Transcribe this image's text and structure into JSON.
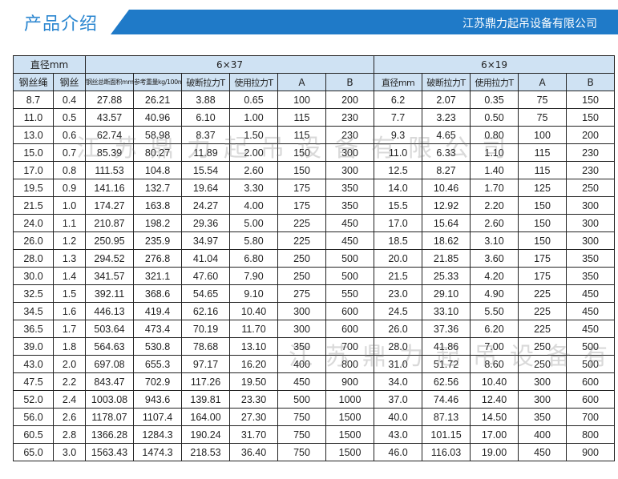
{
  "banner": {
    "title": "产品介绍",
    "company": "江苏鼎力起吊设备有限公司",
    "accent": "#1f7ac8"
  },
  "watermark": "江苏鼎力起吊设备有限公司",
  "table": {
    "group_headers": {
      "diameter": "直径mm",
      "g1": "6×37",
      "g2": "6×19"
    },
    "columns": [
      "钢丝绳",
      "钢丝",
      "钢丝总断面积mm²",
      "参考重量kg/100m",
      "破断拉力T",
      "使用拉力T",
      "A",
      "B",
      "直径mm",
      "破断拉力T",
      "使用拉力T",
      "A",
      "B"
    ],
    "rows": [
      [
        "8.7",
        "0.4",
        "27.88",
        "26.21",
        "3.88",
        "0.65",
        "100",
        "200",
        "6.2",
        "2.07",
        "0.35",
        "75",
        "150"
      ],
      [
        "11.0",
        "0.5",
        "43.57",
        "40.96",
        "6.10",
        "1.00",
        "115",
        "230",
        "7.7",
        "3.23",
        "0.50",
        "75",
        "150"
      ],
      [
        "13.0",
        "0.6",
        "62.74",
        "58.98",
        "8.37",
        "1.50",
        "115",
        "230",
        "9.3",
        "4.65",
        "0.80",
        "100",
        "200"
      ],
      [
        "15.0",
        "0.7",
        "85.39",
        "80.27",
        "11.89",
        "2.00",
        "150",
        "300",
        "11.0",
        "6.33",
        "1.10",
        "115",
        "230"
      ],
      [
        "17.0",
        "0.8",
        "111.53",
        "104.8",
        "15.54",
        "2.60",
        "150",
        "300",
        "12.5",
        "8.27",
        "1.40",
        "115",
        "230"
      ],
      [
        "19.5",
        "0.9",
        "141.16",
        "132.7",
        "19.64",
        "3.30",
        "175",
        "350",
        "14.0",
        "10.46",
        "1.70",
        "125",
        "250"
      ],
      [
        "21.5",
        "1.0",
        "174.27",
        "163.8",
        "24.27",
        "4.00",
        "175",
        "350",
        "15.5",
        "12.92",
        "2.20",
        "150",
        "300"
      ],
      [
        "24.0",
        "1.1",
        "210.87",
        "198.2",
        "29.36",
        "5.00",
        "225",
        "450",
        "17.0",
        "15.64",
        "2.60",
        "150",
        "300"
      ],
      [
        "26.0",
        "1.2",
        "250.95",
        "235.9",
        "34.97",
        "5.80",
        "225",
        "450",
        "18.5",
        "18.62",
        "3.10",
        "150",
        "300"
      ],
      [
        "28.0",
        "1.3",
        "294.52",
        "276.8",
        "41.04",
        "6.80",
        "250",
        "500",
        "20.0",
        "21.85",
        "3.60",
        "175",
        "350"
      ],
      [
        "30.0",
        "1.4",
        "341.57",
        "321.1",
        "47.60",
        "7.90",
        "250",
        "500",
        "21.5",
        "25.33",
        "4.20",
        "175",
        "350"
      ],
      [
        "32.5",
        "1.5",
        "392.11",
        "368.6",
        "54.65",
        "9.10",
        "275",
        "550",
        "23.0",
        "29.10",
        "4.90",
        "225",
        "450"
      ],
      [
        "34.5",
        "1.6",
        "446.13",
        "419.4",
        "62.16",
        "10.40",
        "300",
        "600",
        "24.5",
        "33.10",
        "5.50",
        "225",
        "450"
      ],
      [
        "36.5",
        "1.7",
        "503.64",
        "473.4",
        "70.19",
        "11.70",
        "300",
        "600",
        "26.0",
        "37.36",
        "6.20",
        "225",
        "450"
      ],
      [
        "39.0",
        "1.8",
        "564.63",
        "530.8",
        "78.68",
        "13.10",
        "350",
        "700",
        "28.0",
        "41.86",
        "7.00",
        "250",
        "500"
      ],
      [
        "43.0",
        "2.0",
        "697.08",
        "655.3",
        "97.17",
        "16.20",
        "400",
        "800",
        "31.0",
        "51.72",
        "8.60",
        "250",
        "500"
      ],
      [
        "47.5",
        "2.2",
        "843.47",
        "702.9",
        "117.26",
        "19.50",
        "450",
        "900",
        "34.0",
        "62.56",
        "10.40",
        "300",
        "600"
      ],
      [
        "52.0",
        "2.4",
        "1003.08",
        "943.6",
        "139.81",
        "23.30",
        "500",
        "1000",
        "37.0",
        "74.46",
        "12.40",
        "300",
        "600"
      ],
      [
        "56.0",
        "2.6",
        "1178.07",
        "1107.4",
        "164.00",
        "27.30",
        "750",
        "1500",
        "40.0",
        "87.13",
        "14.50",
        "350",
        "700"
      ],
      [
        "60.5",
        "2.8",
        "1366.28",
        "1284.3",
        "190.24",
        "31.70",
        "750",
        "1500",
        "43.0",
        "101.15",
        "17.00",
        "400",
        "800"
      ],
      [
        "65.0",
        "3.0",
        "1563.43",
        "1474.3",
        "218.53",
        "36.40",
        "750",
        "1500",
        "46.0",
        "116.03",
        "19.00",
        "450",
        "900"
      ]
    ]
  }
}
